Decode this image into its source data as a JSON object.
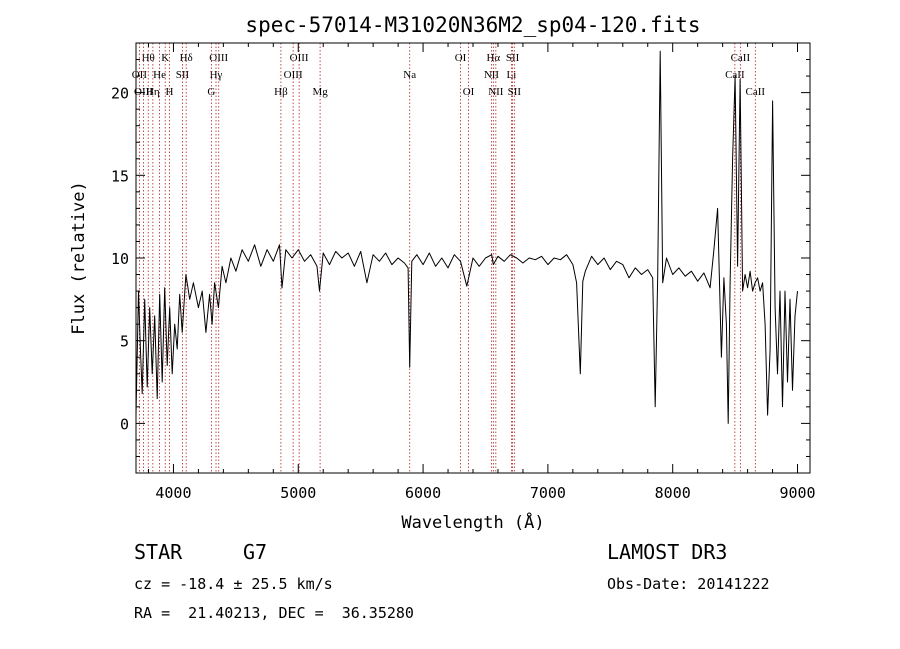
{
  "chart_data": {
    "type": "line",
    "title": "spec-57014-M31020N36M2_sp04-120.fits",
    "xlabel": "Wavelength (Å)",
    "ylabel": "Flux (relative)",
    "xlim": [
      3700,
      9100
    ],
    "ylim": [
      -3,
      23
    ],
    "xticks": [
      4000,
      5000,
      6000,
      7000,
      8000,
      9000
    ],
    "yticks": [
      0,
      5,
      10,
      15,
      20
    ],
    "grid": false,
    "spectral_lines": [
      {
        "label": "Hθ",
        "x": 3798,
        "row": 0
      },
      {
        "label": "K",
        "x": 3934,
        "row": 0
      },
      {
        "label": "Hδ",
        "x": 4102,
        "row": 0
      },
      {
        "label": "OIII",
        "x": 4363,
        "row": 0
      },
      {
        "label": "OIII",
        "x": 5007,
        "row": 0
      },
      {
        "label": "OI",
        "x": 6300,
        "row": 0
      },
      {
        "label": "Hα",
        "x": 6563,
        "row": 0
      },
      {
        "label": "SII",
        "x": 6717,
        "row": 0
      },
      {
        "label": "CaII",
        "x": 8542,
        "row": 0
      },
      {
        "label": "OII",
        "x": 3727,
        "row": 1
      },
      {
        "label": "He",
        "x": 3889,
        "row": 1
      },
      {
        "label": "SII",
        "x": 4072,
        "row": 1
      },
      {
        "label": "Hγ",
        "x": 4341,
        "row": 1
      },
      {
        "label": "OIII",
        "x": 4959,
        "row": 1
      },
      {
        "label": "Na",
        "x": 5893,
        "row": 1
      },
      {
        "label": "NII",
        "x": 6548,
        "row": 1
      },
      {
        "label": "Li",
        "x": 6708,
        "row": 1
      },
      {
        "label": "CaII",
        "x": 8498,
        "row": 1
      },
      {
        "label": "OIII",
        "x": 3760,
        "row": 2
      },
      {
        "label": "Hη",
        "x": 3835,
        "row": 2
      },
      {
        "label": "H",
        "x": 3968,
        "row": 2
      },
      {
        "label": "G",
        "x": 4304,
        "row": 2
      },
      {
        "label": "Hβ",
        "x": 4861,
        "row": 2
      },
      {
        "label": "Mg",
        "x": 5175,
        "row": 2
      },
      {
        "label": "OI",
        "x": 6364,
        "row": 2
      },
      {
        "label": "NII",
        "x": 6583,
        "row": 2
      },
      {
        "label": "SII",
        "x": 6731,
        "row": 2
      },
      {
        "label": "CaII",
        "x": 8662,
        "row": 2
      }
    ],
    "series": [
      {
        "x": [
          3700,
          3720,
          3735,
          3750,
          3770,
          3790,
          3810,
          3830,
          3850,
          3870,
          3890,
          3910,
          3930,
          3950,
          3970,
          3990,
          4010,
          4030,
          4050,
          4070,
          4100,
          4130,
          4160,
          4200,
          4230,
          4260,
          4290,
          4310,
          4330,
          4360,
          4390,
          4420,
          4460,
          4500,
          4550,
          4600,
          4650,
          4700,
          4750,
          4800,
          4850,
          4870,
          4900,
          4950,
          5000,
          5050,
          5100,
          5150,
          5170,
          5200,
          5250,
          5300,
          5350,
          5400,
          5450,
          5500,
          5550,
          5600,
          5650,
          5700,
          5750,
          5800,
          5850,
          5880,
          5893,
          5910,
          5950,
          6000,
          6050,
          6100,
          6150,
          6200,
          6250,
          6300,
          6350,
          6400,
          6450,
          6500,
          6550,
          6563,
          6600,
          6650,
          6700,
          6750,
          6800,
          6850,
          6900,
          6950,
          7000,
          7050,
          7100,
          7150,
          7200,
          7230,
          7260,
          7280,
          7300,
          7350,
          7400,
          7450,
          7500,
          7550,
          7600,
          7650,
          7700,
          7750,
          7800,
          7840,
          7860,
          7880,
          7900,
          7920,
          7950,
          8000,
          8050,
          8100,
          8150,
          8200,
          8250,
          8300,
          8330,
          8360,
          8390,
          8410,
          8430,
          8445,
          8460,
          8480,
          8500,
          8520,
          8540,
          8560,
          8580,
          8600,
          8620,
          8640,
          8660,
          8680,
          8700,
          8720,
          8740,
          8760,
          8780,
          8800,
          8820,
          8840,
          8860,
          8880,
          8900,
          8920,
          8940,
          8960,
          8980,
          9000
        ],
        "y": [
          0.5,
          8.0,
          4.5,
          1.8,
          7.5,
          2.2,
          7.0,
          3.0,
          6.5,
          1.5,
          7.8,
          2.5,
          8.2,
          3.5,
          7.0,
          3.0,
          6.0,
          4.5,
          7.8,
          5.5,
          9.0,
          7.5,
          8.5,
          7.0,
          8.0,
          5.5,
          7.8,
          6.0,
          8.5,
          7.0,
          9.5,
          8.5,
          10.0,
          9.2,
          10.5,
          9.8,
          10.8,
          9.5,
          10.5,
          9.8,
          10.8,
          8.2,
          10.5,
          10.0,
          10.5,
          9.8,
          10.2,
          9.5,
          8.0,
          10.3,
          9.6,
          10.4,
          10.0,
          10.3,
          9.5,
          10.4,
          8.5,
          10.2,
          9.8,
          10.3,
          9.6,
          10.0,
          9.7,
          9.4,
          3.4,
          9.8,
          10.2,
          9.6,
          10.3,
          9.5,
          10.0,
          9.4,
          10.2,
          9.8,
          8.3,
          10.0,
          9.5,
          10.0,
          10.2,
          9.6,
          10.1,
          9.8,
          10.2,
          10.0,
          9.7,
          10.0,
          9.9,
          10.1,
          9.6,
          10.0,
          9.9,
          10.2,
          9.6,
          8.5,
          3.0,
          8.6,
          9.2,
          10.1,
          9.6,
          10.0,
          9.3,
          9.8,
          9.6,
          8.8,
          9.4,
          9.0,
          9.3,
          8.8,
          1.0,
          8.9,
          22.5,
          8.5,
          10.0,
          9.0,
          9.4,
          8.9,
          9.2,
          8.6,
          9.1,
          8.2,
          10.5,
          13.0,
          4.0,
          8.8,
          6.0,
          0.0,
          8.5,
          16.0,
          21.0,
          9.5,
          20.8,
          8.0,
          9.0,
          8.2,
          9.2,
          8.0,
          8.5,
          8.8,
          8.0,
          8.5,
          6.0,
          0.5,
          4.5,
          19.5,
          7.0,
          3.0,
          8.0,
          1.0,
          8.0,
          2.5,
          7.5,
          2.0,
          6.5,
          8.0
        ]
      }
    ]
  },
  "info": {
    "object_class": "STAR",
    "subclass": "G7",
    "survey": "LAMOST DR3",
    "redshift": "cz = -18.4 ± 25.5 km/s",
    "obs_date": "Obs-Date: 20141222",
    "coords": "RA =  21.40213, DEC =  36.35280"
  }
}
